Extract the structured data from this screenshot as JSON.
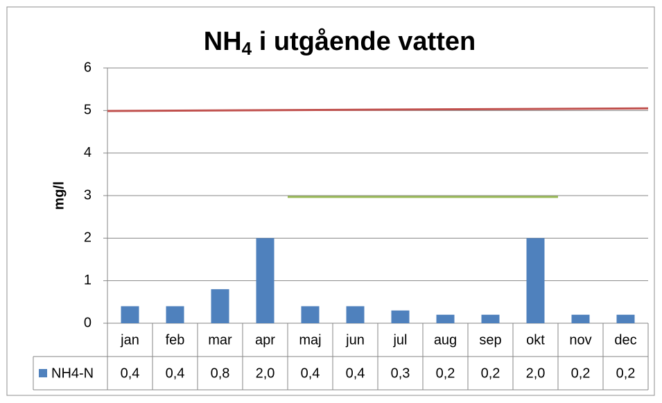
{
  "chart_data": {
    "type": "bar",
    "title": [
      "NH",
      "4",
      " i utgående vatten"
    ],
    "y_label": "mg/l",
    "categories": [
      "jan",
      "feb",
      "mar",
      "apr",
      "maj",
      "jun",
      "jul",
      "aug",
      "sep",
      "okt",
      "nov",
      "dec"
    ],
    "series": [
      {
        "name": "NH4-N",
        "color": "#4f81bd",
        "values": [
          0.4,
          0.4,
          0.8,
          2.0,
          0.4,
          0.4,
          0.3,
          0.2,
          0.2,
          2.0,
          0.2,
          0.2
        ],
        "value_labels": [
          "0,4",
          "0,4",
          "0,8",
          "2,0",
          "0,4",
          "0,4",
          "0,3",
          "0,2",
          "0,2",
          "2,0",
          "0,2",
          "0,2"
        ]
      }
    ],
    "lines": [
      {
        "color": "#c0504d",
        "from": "jan",
        "to": "dec",
        "values": [
          4.99,
          5.05
        ]
      },
      {
        "color": "#9bbb59",
        "from": "maj",
        "to": "okt",
        "values": [
          2.97,
          2.97
        ]
      }
    ],
    "ylim": [
      0,
      6
    ],
    "yticks": [
      0,
      1,
      2,
      3,
      4,
      5,
      6
    ],
    "grid": true,
    "data_table": true
  }
}
